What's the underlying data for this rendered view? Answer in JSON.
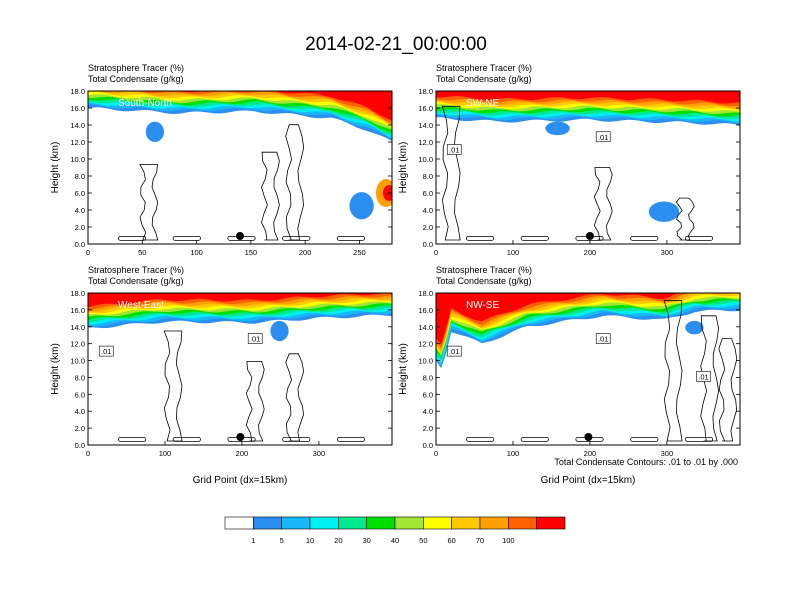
{
  "figure": {
    "title": "2014-02-21_00:00:00",
    "contour_note": "Total Condensate Contours: .01 to .01 by .000"
  },
  "colorbar": {
    "labels": [
      "1",
      "5",
      "10",
      "20",
      "30",
      "40",
      "50",
      "60",
      "70",
      "100"
    ],
    "colors": [
      "#ffffff",
      "#2a8ff0",
      "#18b8f8",
      "#00f0f0",
      "#00e890",
      "#00e000",
      "#a0e632",
      "#ffff00",
      "#ffc800",
      "#ffa000",
      "#ff6000",
      "#ff0000"
    ]
  },
  "chart_data": [
    {
      "type": "heatmap",
      "title": "South-North",
      "subtitle_left_1": "Stratosphere Tracer   (%)",
      "subtitle_left_2": "Total Condensate   (g/kg)",
      "ylabel": "Height (km)",
      "xlabel": "",
      "ylim": [
        0,
        18
      ],
      "xlim": [
        0,
        280
      ],
      "xticks": [
        "0",
        "50",
        "100",
        "150",
        "200",
        "250"
      ],
      "yticks": [
        "0.0",
        "2.0",
        "4.0",
        "6.0",
        "8.0",
        "10.0",
        "12.0",
        "14.0",
        "16.0",
        "18.0"
      ],
      "marker_x": 140,
      "contour_labels": []
    },
    {
      "type": "heatmap",
      "title": "SW-NE",
      "subtitle_left_1": "Stratosphere Tracer   (%)",
      "subtitle_left_2": "Total Condensate   (g/kg)",
      "ylabel": "Height (km)",
      "xlabel": "",
      "ylim": [
        0,
        18
      ],
      "xlim": [
        0,
        395
      ],
      "xticks": [
        "0",
        "100",
        "200",
        "300"
      ],
      "yticks": [
        "0.0",
        "2.0",
        "4.0",
        "6.0",
        "8.0",
        "10.0",
        "12.0",
        "14.0",
        "16.0",
        "18.0"
      ],
      "marker_x": 200,
      "contour_labels": [
        ".01",
        ".01"
      ]
    },
    {
      "type": "heatmap",
      "title": "West-East",
      "subtitle_left_1": "Stratosphere Tracer   (%)",
      "subtitle_left_2": "Total Condensate   (g/kg)",
      "ylabel": "Height (km)",
      "xlabel": "Grid Point (dx=15km)",
      "ylim": [
        0,
        18
      ],
      "xlim": [
        0,
        395
      ],
      "xticks": [
        "0",
        "100",
        "200",
        "300"
      ],
      "yticks": [
        "0.0",
        "2.0",
        "4.0",
        "6.0",
        "8.0",
        "10.0",
        "12.0",
        "14.0",
        "16.0",
        "18.0"
      ],
      "marker_x": 198,
      "contour_labels": [
        ".01",
        ".01"
      ]
    },
    {
      "type": "heatmap",
      "title": "NW-SE",
      "subtitle_left_1": "Stratosphere Tracer   (%)",
      "subtitle_left_2": "Total Condensate   (g/kg)",
      "ylabel": "Height (km)",
      "xlabel": "Grid Point (dx=15km)",
      "ylim": [
        0,
        18
      ],
      "xlim": [
        0,
        395
      ],
      "xticks": [
        "0",
        "100",
        "200",
        "300"
      ],
      "yticks": [
        "0.0",
        "2.0",
        "4.0",
        "6.0",
        "8.0",
        "10.0",
        "12.0",
        "14.0",
        "16.0",
        "18.0"
      ],
      "marker_x": 198,
      "contour_labels": [
        ".01",
        ".01",
        ".01"
      ]
    }
  ]
}
